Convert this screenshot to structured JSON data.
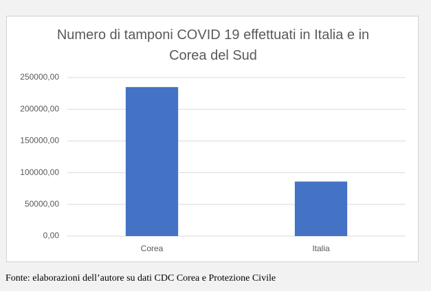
{
  "chart_data": {
    "type": "bar",
    "title": "Numero di tamponi COVID 19 effettuati in Italia e in Corea del Sud",
    "categories": [
      "Corea",
      "Italia"
    ],
    "values": [
      235000,
      86000
    ],
    "color": "#4472c4",
    "ylim": [
      0,
      250000
    ],
    "yticks": [
      {
        "value": 0,
        "label": "0,00"
      },
      {
        "value": 50000,
        "label": "50000,00"
      },
      {
        "value": 100000,
        "label": "100000,00"
      },
      {
        "value": 150000,
        "label": "150000,00"
      },
      {
        "value": 200000,
        "label": "200000,00"
      },
      {
        "value": 250000,
        "label": "250000,00"
      }
    ],
    "grid": true,
    "source": "Fonte: elaborazioni dell’autore su dati CDC Corea e Protezione Civile"
  }
}
